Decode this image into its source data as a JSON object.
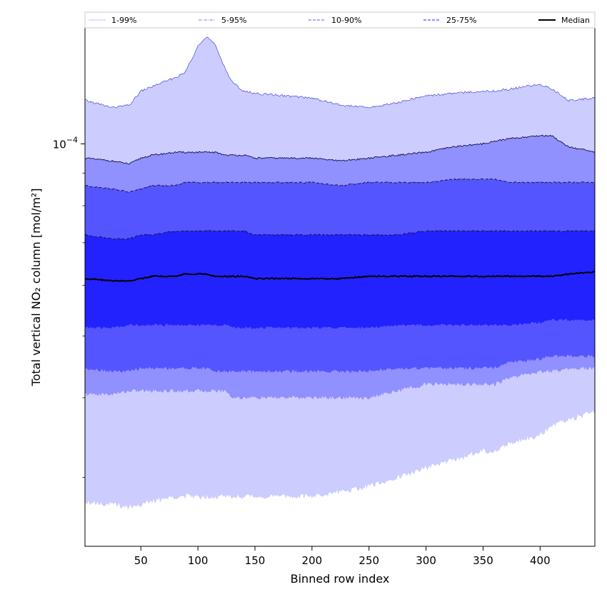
{
  "chart_data": {
    "type": "area",
    "xlabel": "Binned row index",
    "ylabel": "Total vertical NO₂ column [mol/m²]",
    "y_scale": "log",
    "x_range": [
      1,
      448
    ],
    "y_range": [
      2.34e-05,
      0.000152
    ],
    "x_ticks": [
      50,
      100,
      150,
      200,
      250,
      300,
      350,
      400
    ],
    "x_tick_labels": [
      "50",
      "100",
      "150",
      "200",
      "250",
      "300",
      "350",
      "400"
    ],
    "y_major_tick": {
      "value": 0.0001,
      "base": "10",
      "exponent": "−4"
    },
    "y_minor_ticks": [
      3e-05,
      4e-05,
      5e-05,
      6e-05,
      7e-05,
      8e-05,
      9e-05
    ],
    "legend_position": "top",
    "legend": [
      {
        "label": "1-99%",
        "style": "solid",
        "color": "#ccccff"
      },
      {
        "label": "5-95%",
        "style": "dashdot",
        "color": "#9090ff"
      },
      {
        "label": "10-90%",
        "style": "dashed",
        "color": "#7878ff"
      },
      {
        "label": "25-75%",
        "style": "dashed",
        "color": "#5050ff"
      },
      {
        "label": "Median",
        "style": "solid",
        "color": "#000000"
      }
    ],
    "band_colors": {
      "1-99%": "#ccccff",
      "5-95%": "#9090ff",
      "10-90%": "#5555ff",
      "25-75%": "#2222ff",
      "median": "#000000"
    },
    "x": [
      1,
      25,
      40,
      50,
      60,
      80,
      88,
      95,
      100,
      108,
      115,
      125,
      130,
      140,
      150,
      175,
      200,
      225,
      250,
      275,
      300,
      325,
      350,
      360,
      375,
      400,
      410,
      425,
      448
    ],
    "series": [
      {
        "name": "1-99%",
        "bound": "upper",
        "values": [
          0.000117,
          0.000114,
          0.000115,
          0.000121,
          0.000123,
          0.000127,
          0.000129,
          0.000136,
          0.000143,
          0.000147,
          0.000143,
          0.00013,
          0.000125,
          0.000121,
          0.00012,
          0.000119,
          0.000118,
          0.000115,
          0.000114,
          0.000116,
          0.000119,
          0.00012,
          0.000121,
          0.000121,
          0.000122,
          0.000124,
          0.000122,
          0.000117,
          0.000118
        ]
      },
      {
        "name": "5-95%",
        "bound": "upper",
        "values": [
          9.5e-05,
          9.4e-05,
          9.3e-05,
          9.5e-05,
          9.6e-05,
          9.7e-05,
          9.7e-05,
          9.7e-05,
          9.7e-05,
          9.7e-05,
          9.7e-05,
          9.6e-05,
          9.6e-05,
          9.6e-05,
          9.5e-05,
          9.5e-05,
          9.5e-05,
          9.4e-05,
          9.5e-05,
          9.6e-05,
          9.7e-05,
          9.9e-05,
          0.0001,
          0.000101,
          0.000102,
          0.000103,
          0.000103,
          9.9e-05,
          9.7e-05
        ]
      },
      {
        "name": "10-90%",
        "bound": "upper",
        "values": [
          8.6e-05,
          8.5e-05,
          8.4e-05,
          8.5e-05,
          8.6e-05,
          8.6e-05,
          8.7e-05,
          8.7e-05,
          8.7e-05,
          8.7e-05,
          8.7e-05,
          8.7e-05,
          8.7e-05,
          8.7e-05,
          8.7e-05,
          8.7e-05,
          8.7e-05,
          8.6e-05,
          8.7e-05,
          8.7e-05,
          8.7e-05,
          8.8e-05,
          8.8e-05,
          8.8e-05,
          8.7e-05,
          8.7e-05,
          8.7e-05,
          8.7e-05,
          8.7e-05
        ]
      },
      {
        "name": "25-75%",
        "bound": "upper",
        "values": [
          7.2e-05,
          7.1e-05,
          7.1e-05,
          7.2e-05,
          7.2e-05,
          7.3e-05,
          7.3e-05,
          7.3e-05,
          7.3e-05,
          7.3e-05,
          7.3e-05,
          7.3e-05,
          7.3e-05,
          7.3e-05,
          7.2e-05,
          7.2e-05,
          7.2e-05,
          7.2e-05,
          7.2e-05,
          7.2e-05,
          7.3e-05,
          7.3e-05,
          7.3e-05,
          7.3e-05,
          7.3e-05,
          7.3e-05,
          7.3e-05,
          7.3e-05,
          7.3e-05
        ]
      },
      {
        "name": "Median",
        "values": [
          6.15e-05,
          6.1e-05,
          6.1e-05,
          6.15e-05,
          6.2e-05,
          6.2e-05,
          6.25e-05,
          6.25e-05,
          6.25e-05,
          6.25e-05,
          6.2e-05,
          6.2e-05,
          6.2e-05,
          6.2e-05,
          6.15e-05,
          6.15e-05,
          6.15e-05,
          6.15e-05,
          6.2e-05,
          6.2e-05,
          6.2e-05,
          6.2e-05,
          6.2e-05,
          6.2e-05,
          6.2e-05,
          6.2e-05,
          6.2e-05,
          6.25e-05,
          6.3e-05
        ]
      },
      {
        "name": "25-75%",
        "bound": "lower",
        "values": [
          5.15e-05,
          5.15e-05,
          5.2e-05,
          5.2e-05,
          5.2e-05,
          5.2e-05,
          5.2e-05,
          5.2e-05,
          5.2e-05,
          5.2e-05,
          5.2e-05,
          5.2e-05,
          5.15e-05,
          5.15e-05,
          5.15e-05,
          5.15e-05,
          5.15e-05,
          5.15e-05,
          5.15e-05,
          5.2e-05,
          5.2e-05,
          5.2e-05,
          5.2e-05,
          5.2e-05,
          5.2e-05,
          5.25e-05,
          5.3e-05,
          5.3e-05,
          5.3e-05
        ]
      },
      {
        "name": "10-90%",
        "bound": "lower",
        "values": [
          4.45e-05,
          4.4e-05,
          4.4e-05,
          4.45e-05,
          4.45e-05,
          4.45e-05,
          4.45e-05,
          4.45e-05,
          4.45e-05,
          4.45e-05,
          4.4e-05,
          4.4e-05,
          4.4e-05,
          4.4e-05,
          4.4e-05,
          4.4e-05,
          4.4e-05,
          4.4e-05,
          4.4e-05,
          4.45e-05,
          4.45e-05,
          4.45e-05,
          4.45e-05,
          4.45e-05,
          4.55e-05,
          4.6e-05,
          4.65e-05,
          4.65e-05,
          4.65e-05
        ]
      },
      {
        "name": "5-95%",
        "bound": "lower",
        "values": [
          4.05e-05,
          4.05e-05,
          4.1e-05,
          4.1e-05,
          4.1e-05,
          4.1e-05,
          4.1e-05,
          4.1e-05,
          4.1e-05,
          4.1e-05,
          4.1e-05,
          4.1e-05,
          4e-05,
          4e-05,
          4e-05,
          4e-05,
          4e-05,
          4e-05,
          4e-05,
          4.1e-05,
          4.2e-05,
          4.2e-05,
          4.2e-05,
          4.2e-05,
          4.3e-05,
          4.4e-05,
          4.4e-05,
          4.45e-05,
          4.45e-05
        ]
      },
      {
        "name": "1-99%",
        "bound": "lower",
        "values": [
          2.75e-05,
          2.72e-05,
          2.7e-05,
          2.72e-05,
          2.75e-05,
          2.8e-05,
          2.8e-05,
          2.8e-05,
          2.8e-05,
          2.8e-05,
          2.8e-05,
          2.8e-05,
          2.8e-05,
          2.8e-05,
          2.8e-05,
          2.8e-05,
          2.8e-05,
          2.85e-05,
          2.9e-05,
          3e-05,
          3.1e-05,
          3.2e-05,
          3.3e-05,
          3.3e-05,
          3.4e-05,
          3.5e-05,
          3.6e-05,
          3.7e-05,
          3.8e-05
        ]
      }
    ]
  }
}
